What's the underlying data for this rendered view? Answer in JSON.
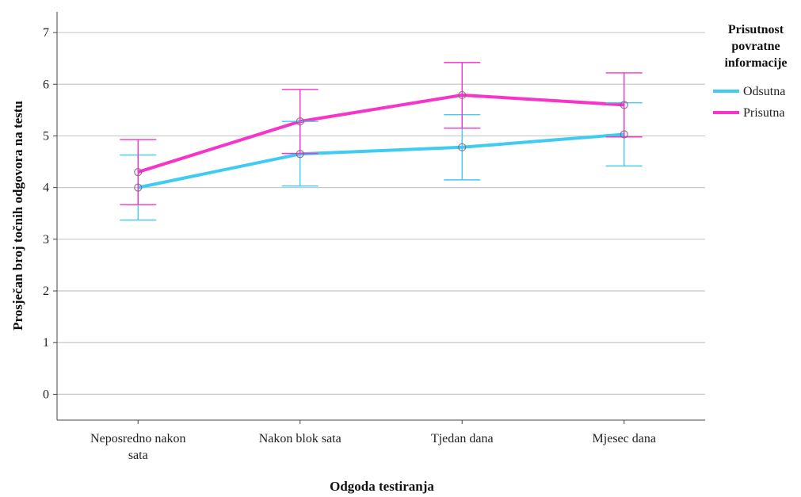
{
  "chart_data": {
    "type": "line",
    "xlabel": "Odgoda testiranja",
    "ylabel": "Prosječan broj točnih odgovora na testu",
    "ylim": [
      -0.5,
      7.4
    ],
    "yticks": [
      "0",
      "1",
      "2",
      "3",
      "4",
      "5",
      "6",
      "7"
    ],
    "categories": [
      [
        "Neposredno nakon",
        "sata"
      ],
      [
        "Nakon blok sata"
      ],
      [
        "Tjedan dana"
      ],
      [
        "Mjesec dana"
      ]
    ],
    "grid": "horizontal",
    "legend": {
      "title": [
        "Prisutnost",
        "povratne",
        "informacije"
      ],
      "placement": "right"
    },
    "series": [
      {
        "name": "Odsutna",
        "color": "#3fcbf2",
        "values": [
          4.0,
          4.65,
          4.78,
          5.03
        ],
        "error_low": [
          3.37,
          4.03,
          4.15,
          4.42
        ],
        "error_high": [
          4.63,
          5.28,
          5.41,
          5.64
        ]
      },
      {
        "name": "Prisutna",
        "color": "#f733c8",
        "values": [
          4.3,
          5.28,
          5.79,
          5.6
        ],
        "error_low": [
          3.67,
          4.66,
          5.15,
          4.98
        ],
        "error_high": [
          4.93,
          5.9,
          6.42,
          6.22
        ]
      }
    ]
  }
}
